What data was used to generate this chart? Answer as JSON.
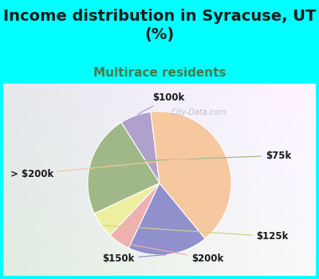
{
  "title": "Income distribution in Syracuse, UT\n(%)",
  "subtitle": "Multirace residents",
  "title_color": "#1a1a1a",
  "subtitle_color": "#4a7a4a",
  "background_color": "#00FFFF",
  "labels": [
    "$100k",
    "$75k",
    "$125k",
    "$200k",
    "$150k",
    "> $200k"
  ],
  "values": [
    7,
    23,
    6,
    5,
    18,
    41
  ],
  "colors": [
    "#b0a0cc",
    "#a0b888",
    "#eeeea0",
    "#f0b0b0",
    "#9090cc",
    "#f5c8a0"
  ],
  "label_fontsize": 8.5,
  "title_fontsize": 14,
  "subtitle_fontsize": 11,
  "startangle": 97,
  "watermark": "City-Data.com"
}
